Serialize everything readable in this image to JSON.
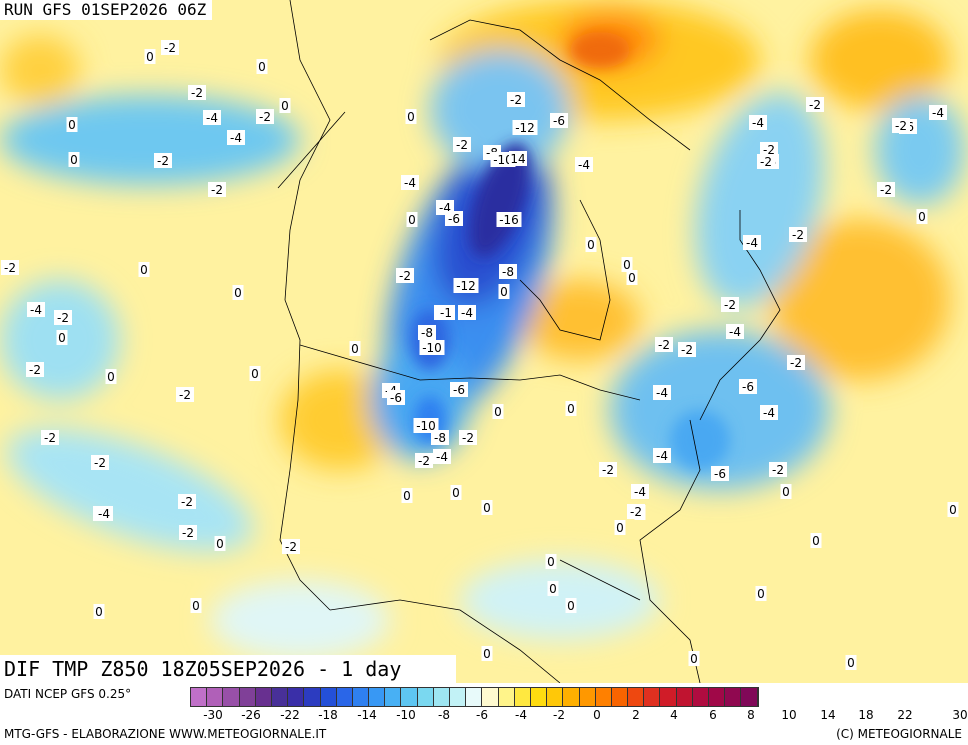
{
  "run_title": "RUN GFS 01SEP2026 06Z",
  "main_title": "DIF TMP Z850 18Z05SEP2026 - 1 day",
  "source": "DATI NCEP GFS 0.25°",
  "credits_left": "MTG-GFS - ELABORAZIONE WWW.METEOGIORNALE.IT",
  "credits_right": "(C) METEOGIORNALE",
  "legend": {
    "colors": [
      "#c070c8",
      "#b060b8",
      "#9850a8",
      "#804098",
      "#683090",
      "#483098",
      "#3a2fa8",
      "#2c3cc0",
      "#2450d8",
      "#2a66e8",
      "#2f80f0",
      "#3898f4",
      "#48b0f4",
      "#5ec6f2",
      "#7ad8f0",
      "#9ee6f2",
      "#c2f2f6",
      "#e8fafa",
      "#fffad0",
      "#fff48a",
      "#ffe840",
      "#ffdc10",
      "#ffc808",
      "#ffb000",
      "#ff9800",
      "#ff8000",
      "#f86400",
      "#ee4810",
      "#e03020",
      "#d01c28",
      "#c01430",
      "#b00c40",
      "#a00848",
      "#900850",
      "#800858"
    ],
    "ticks": [
      "-30",
      "-26",
      "-22",
      "-18",
      "-14",
      "-10",
      "-8",
      "-6",
      "-4",
      "-2",
      "0",
      "2",
      "4",
      "6",
      "8",
      "10",
      "14",
      "18",
      "22",
      "30"
    ]
  },
  "contour_labels": [
    {
      "t": "-2"
    },
    {
      "t": "0"
    },
    {
      "t": "0"
    },
    {
      "t": "-2"
    },
    {
      "t": "-4"
    },
    {
      "t": "-2"
    },
    {
      "t": "-4"
    },
    {
      "t": "0"
    },
    {
      "t": "0"
    },
    {
      "t": "-2"
    },
    {
      "t": "-2"
    },
    {
      "t": "0"
    },
    {
      "t": "-2"
    },
    {
      "t": "-4"
    },
    {
      "t": "-2"
    },
    {
      "t": "0"
    },
    {
      "t": "-2"
    },
    {
      "t": "0"
    },
    {
      "t": "0"
    },
    {
      "t": "-2"
    },
    {
      "t": "-4"
    },
    {
      "t": "-2"
    },
    {
      "t": "-2"
    },
    {
      "t": "-4"
    },
    {
      "t": "-2"
    },
    {
      "t": "0"
    },
    {
      "t": "0"
    },
    {
      "t": "0"
    },
    {
      "t": "-2"
    },
    {
      "t": "-4"
    },
    {
      "t": "0"
    },
    {
      "t": "-2"
    },
    {
      "t": "-12"
    },
    {
      "t": "-6"
    },
    {
      "t": "-2"
    },
    {
      "t": "-8"
    },
    {
      "t": "-10"
    },
    {
      "t": "14"
    },
    {
      "t": "-4"
    },
    {
      "t": "-4"
    },
    {
      "t": "-6"
    },
    {
      "t": "-16"
    },
    {
      "t": "0"
    },
    {
      "t": "-2"
    },
    {
      "t": "-8"
    },
    {
      "t": "-12"
    },
    {
      "t": "0"
    },
    {
      "t": "-2"
    },
    {
      "t": "-1"
    },
    {
      "t": "-4"
    },
    {
      "t": "-8"
    },
    {
      "t": "-10"
    },
    {
      "t": "0"
    },
    {
      "t": "-4"
    },
    {
      "t": "-6"
    },
    {
      "t": "-6"
    },
    {
      "t": "0"
    },
    {
      "t": "-10"
    },
    {
      "t": "-8"
    },
    {
      "t": "-2"
    },
    {
      "t": "-2"
    },
    {
      "t": "-4"
    },
    {
      "t": "0"
    },
    {
      "t": "0"
    },
    {
      "t": "0"
    },
    {
      "t": "0"
    },
    {
      "t": "0"
    },
    {
      "t": "0"
    },
    {
      "t": "0"
    },
    {
      "t": "-2"
    },
    {
      "t": "-2"
    },
    {
      "t": "-4"
    },
    {
      "t": "-2"
    },
    {
      "t": "-2"
    },
    {
      "t": "-4"
    },
    {
      "t": "-2"
    },
    {
      "t": "-6"
    },
    {
      "t": "-2"
    },
    {
      "t": "-4"
    },
    {
      "t": "-6"
    },
    {
      "t": "-4"
    },
    {
      "t": "-2"
    },
    {
      "t": "-2"
    },
    {
      "t": "0"
    },
    {
      "t": "-4"
    },
    {
      "t": "-2"
    },
    {
      "t": "-6"
    },
    {
      "t": "-4"
    },
    {
      "t": "-2"
    },
    {
      "t": "0"
    },
    {
      "t": "0"
    },
    {
      "t": "0"
    },
    {
      "t": "0"
    },
    {
      "t": "0"
    },
    {
      "t": "0"
    },
    {
      "t": "0"
    },
    {
      "t": "0"
    },
    {
      "t": "0"
    },
    {
      "t": "0"
    },
    {
      "t": "0"
    },
    {
      "t": "-2"
    },
    {
      "t": "-4"
    },
    {
      "t": "-2"
    },
    {
      "t": "-6"
    },
    {
      "t": "-4"
    },
    {
      "t": "0"
    },
    {
      "t": "0"
    },
    {
      "t": "-2"
    },
    {
      "t": "-2"
    },
    {
      "t": "0"
    }
  ]
}
